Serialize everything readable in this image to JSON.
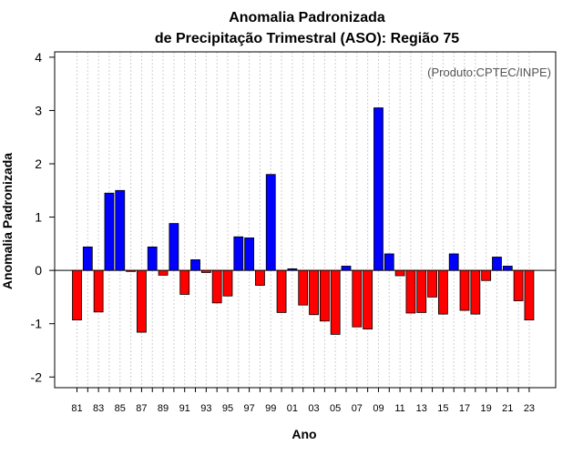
{
  "chart_data": {
    "type": "bar",
    "title_line1": "Anomalia Padronizada",
    "title_line2": "de Precipitação Trimestral (ASO): Região 75",
    "xlabel": "Ano",
    "ylabel": "Anomalia Padronizada",
    "credit": "(Produto:CPTEC/INPE)",
    "ylim": [
      -2.2,
      4.1
    ],
    "yticks": [
      "-2",
      "-1",
      "0",
      "1",
      "2",
      "3",
      "4"
    ],
    "categories": [
      "81",
      "82",
      "83",
      "84",
      "85",
      "86",
      "87",
      "88",
      "89",
      "90",
      "91",
      "92",
      "93",
      "94",
      "95",
      "96",
      "97",
      "98",
      "99",
      "00",
      "01",
      "02",
      "03",
      "04",
      "05",
      "06",
      "07",
      "08",
      "09",
      "10",
      "11",
      "12",
      "13",
      "14",
      "15",
      "16",
      "17",
      "18",
      "19",
      "20",
      "21",
      "22",
      "23"
    ],
    "xtick_labels": [
      "81",
      "83",
      "85",
      "87",
      "89",
      "91",
      "93",
      "95",
      "97",
      "99",
      "01",
      "03",
      "05",
      "07",
      "09",
      "11",
      "13",
      "15",
      "17",
      "19",
      "21",
      "23"
    ],
    "values": [
      -0.93,
      0.44,
      -0.78,
      1.45,
      1.5,
      -0.02,
      -1.16,
      0.44,
      -0.09,
      0.88,
      -0.45,
      0.2,
      -0.04,
      -0.61,
      -0.48,
      0.63,
      0.61,
      -0.28,
      1.8,
      -0.79,
      0.03,
      -0.65,
      -0.83,
      -0.95,
      -1.2,
      0.08,
      -1.06,
      -1.1,
      3.05,
      0.31,
      -0.1,
      -0.8,
      -0.79,
      -0.5,
      -0.82,
      0.31,
      -0.75,
      -0.82,
      -0.19,
      0.25,
      0.08,
      -0.57,
      -0.93
    ],
    "colors": {
      "positive": "#0000ff",
      "negative": "#ff0000",
      "grid": "#d0d0d0",
      "axis": "#000000"
    }
  }
}
